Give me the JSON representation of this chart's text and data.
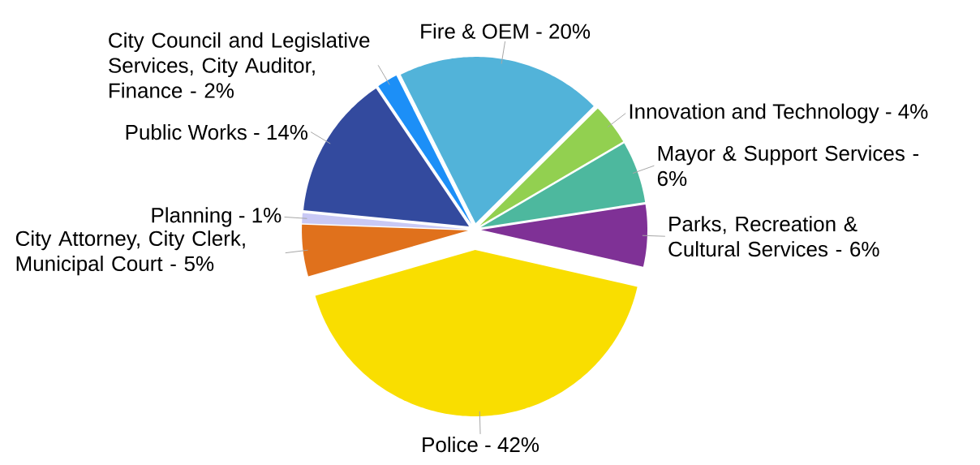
{
  "chart_data": {
    "type": "pie",
    "categories": [
      "City Council and Legislative Services, City Auditor, Finance  - 2%",
      "Fire & OEM  - 20%",
      "Innovation and Technology - 4%",
      "Mayor & Support Services  - 6%",
      "Parks, Recreation & Cultural Services - 6%",
      "Police - 42%",
      "City Attorney, City Clerk, Municipal Court  - 5%",
      "Planning - 1%",
      "Public Works - 14%"
    ],
    "values": [
      2,
      20,
      4,
      6,
      6,
      42,
      5,
      1,
      14
    ],
    "colors": [
      "#1c8ff7",
      "#52b3d9",
      "#92d050",
      "#4db89e",
      "#7f3196",
      "#f9de00",
      "#e0711c",
      "#c9c9f5",
      "#334a9e"
    ]
  }
}
